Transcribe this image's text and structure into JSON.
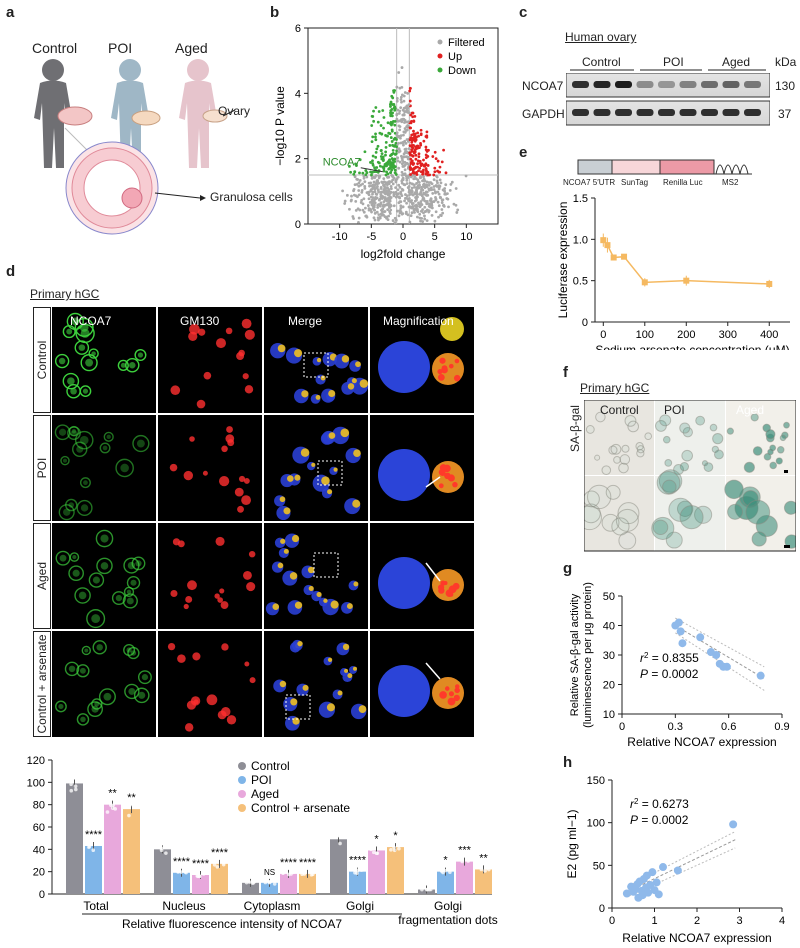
{
  "panel_letters": {
    "a": "a",
    "b": "b",
    "c": "c",
    "d": "d",
    "e": "e",
    "f": "f",
    "g": "g",
    "h": "h"
  },
  "panel_a": {
    "groups": [
      "Control",
      "POI",
      "Aged"
    ],
    "ovary_label": "Ovary",
    "granulosa_label": "Granulosa cells"
  },
  "panel_b": {
    "chart_data": {
      "type": "scatter",
      "xlabel": "log2fold change",
      "ylabel": "−log10 P value",
      "xlim": [
        -15,
        15
      ],
      "ylim": [
        0,
        6
      ],
      "xticks": [
        -10,
        -5,
        0,
        5,
        10
      ],
      "yticks": [
        0,
        2,
        4,
        6
      ],
      "legend": [
        "Filtered",
        "Up",
        "Down"
      ],
      "legend_colors": [
        "#a9a9a9",
        "#e02020",
        "#3aa83a"
      ],
      "annotation": "NCOA7",
      "annotation_point": [
        -3.2,
        1.6
      ]
    }
  },
  "panel_c": {
    "title": "Human ovary",
    "groups": [
      "Control",
      "POI",
      "Aged"
    ],
    "unit": "kDa",
    "bands": [
      {
        "name": "NCOA7",
        "kda": "130"
      },
      {
        "name": "GAPDH",
        "kda": "37"
      }
    ]
  },
  "panel_e": {
    "construct": [
      "NCOA7 5′UTR",
      "SunTag",
      "Renilla Luc",
      "MS2"
    ],
    "chart_data": {
      "type": "line",
      "xlabel": "Sodium arsenate concentration (μM)",
      "ylabel": "Luciferase expression",
      "x": [
        0,
        10,
        25,
        50,
        100,
        200,
        400
      ],
      "y": [
        0.99,
        0.93,
        0.78,
        0.79,
        0.48,
        0.5,
        0.46
      ],
      "err": [
        0.08,
        0.09,
        0.03,
        0.03,
        0.05,
        0.06,
        0.05
      ],
      "xlim": [
        -20,
        450
      ],
      "ylim": [
        0,
        1.5
      ],
      "xticks": [
        0,
        100,
        200,
        300,
        400
      ],
      "yticks": [
        0,
        0.5,
        1.0,
        1.5
      ],
      "ytick_labels": [
        "0",
        "0.5",
        "1.0",
        "1.5"
      ]
    }
  },
  "panel_d": {
    "subtitle": "Primary hGC",
    "columns": [
      "NCOA7",
      "GM130",
      "Merge",
      "Magnification"
    ],
    "rows": [
      "Control",
      "POI",
      "Aged",
      "Control + arsenate"
    ]
  },
  "panel_d_chart": {
    "chart_data": {
      "type": "bar",
      "categories": [
        "Total",
        "Nucleus",
        "Cytoplasm",
        "Golgi",
        "Golgi\nfragmentation dots"
      ],
      "category_labels": [
        "Total",
        "Nucleus",
        "Cytoplasm",
        "Golgi",
        "Golgi",
        "fragmentation dots"
      ],
      "xlabel": "Relative fluorescence intensity of NCOA7",
      "ylim": [
        0,
        120
      ],
      "yticks": [
        0,
        20,
        40,
        60,
        80,
        100,
        120
      ],
      "series": [
        {
          "name": "Control",
          "color": "#8e8e96",
          "values": [
            99,
            40,
            10,
            49,
            4
          ],
          "stars": [
            "",
            "",
            "",
            "",
            ""
          ]
        },
        {
          "name": "POI",
          "color": "#7fb5e8",
          "values": [
            43,
            19,
            10,
            20,
            20
          ],
          "stars": [
            "****",
            "****",
            "NS",
            "****",
            "*"
          ]
        },
        {
          "name": "Aged",
          "color": "#e8a8dc",
          "values": [
            80,
            17,
            18,
            39,
            29
          ],
          "stars": [
            "**",
            "****",
            "****",
            "*",
            "***"
          ]
        },
        {
          "name": "Control + arsenate",
          "color": "#f5c07a",
          "values": [
            76,
            27,
            18,
            42,
            22
          ],
          "stars": [
            "**",
            "****",
            "****",
            "*",
            "**"
          ]
        }
      ]
    }
  },
  "panel_f": {
    "subtitle": "Primary hGC",
    "row_label": "SA-β-gal",
    "columns": [
      "Control",
      "POI",
      "Aged"
    ]
  },
  "panel_g": {
    "chart_data": {
      "type": "scatter",
      "xlabel": "Relative NCOA7 expression",
      "ylabel": "Relative SA-β-gal activity (luminescence per μg protein)",
      "ylabel_lines": [
        "Relative SA-β-gal activity",
        "(luminescence per μg protein)"
      ],
      "x": [
        0.3,
        0.32,
        0.33,
        0.34,
        0.44,
        0.5,
        0.53,
        0.55,
        0.57,
        0.59,
        0.78
      ],
      "y": [
        40,
        41,
        38,
        34,
        36,
        31,
        30,
        27,
        26,
        26,
        23
      ],
      "xlim": [
        0,
        0.9
      ],
      "ylim": [
        10,
        50
      ],
      "xticks": [
        0,
        0.3,
        0.6,
        0.9
      ],
      "yticks": [
        10,
        20,
        30,
        40,
        50
      ],
      "r2_label": "r",
      "r2_value": " = 0.8355",
      "p_label": "P",
      "p_value": " = 0.0002"
    }
  },
  "panel_h": {
    "chart_data": {
      "type": "scatter",
      "xlabel": "Relative NCOA7 expression",
      "ylabel": "E2 (pg ml−1)",
      "x": [
        0.35,
        0.45,
        0.5,
        0.55,
        0.6,
        0.62,
        0.65,
        0.7,
        0.72,
        0.75,
        0.8,
        0.82,
        0.85,
        0.9,
        0.95,
        1.0,
        1.05,
        1.1,
        1.2,
        1.55,
        2.85
      ],
      "y": [
        17,
        25,
        19,
        22,
        28,
        12,
        31,
        20,
        15,
        34,
        24,
        38,
        18,
        27,
        42,
        21,
        30,
        16,
        48,
        44,
        98
      ],
      "xlim": [
        0,
        4
      ],
      "ylim": [
        0,
        150
      ],
      "xticks": [
        0,
        1,
        2,
        3,
        4
      ],
      "yticks": [
        0,
        50,
        100,
        150
      ],
      "r2_label": "r",
      "r2_value": " = 0.6273",
      "p_label": "P",
      "p_value": " = 0.0002"
    }
  }
}
